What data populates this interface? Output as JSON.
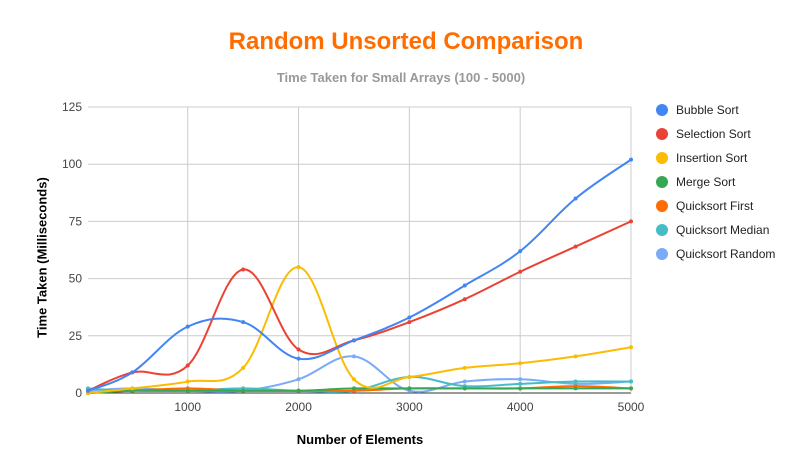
{
  "chart_data": {
    "type": "line",
    "title": "Random Unsorted Comparison",
    "subtitle": "Time Taken for Small Arrays (100 - 5000)",
    "xlabel": "Number of Elements",
    "ylabel": "Time Taken (Milliseconds)",
    "title_color": "#ff6d01",
    "x": [
      100,
      500,
      1000,
      1500,
      2000,
      2500,
      3000,
      3500,
      4000,
      4500,
      5000
    ],
    "xlim": [
      100,
      5000
    ],
    "ylim": [
      0,
      125
    ],
    "xticks": [
      1000,
      2000,
      3000,
      4000,
      5000
    ],
    "yticks": [
      0,
      25,
      50,
      75,
      100,
      125
    ],
    "grid": true,
    "legend_position": "right",
    "series": [
      {
        "name": "Bubble Sort",
        "color": "#4285f4",
        "values": [
          1,
          9,
          29,
          31,
          15,
          23,
          33,
          47,
          62,
          85,
          102
        ]
      },
      {
        "name": "Selection Sort",
        "color": "#ea4335",
        "values": [
          1,
          9,
          12,
          54,
          19,
          23,
          31,
          41,
          53,
          64,
          75
        ]
      },
      {
        "name": "Insertion Sort",
        "color": "#fbbc04",
        "values": [
          0,
          2,
          5,
          11,
          55,
          6,
          7,
          11,
          13,
          16,
          20
        ]
      },
      {
        "name": "Merge Sort",
        "color": "#34a853",
        "values": [
          0,
          1,
          1,
          1,
          1,
          2,
          2,
          2,
          2,
          2,
          2
        ]
      },
      {
        "name": "Quicksort First",
        "color": "#ff6d01",
        "values": [
          0,
          1,
          2,
          1,
          1,
          1,
          2,
          2,
          2,
          3,
          2
        ]
      },
      {
        "name": "Quicksort Median",
        "color": "#46bdc6",
        "values": [
          2,
          1,
          1,
          2,
          1,
          1,
          7,
          3,
          4,
          5,
          5
        ]
      },
      {
        "name": "Quicksort Random",
        "color": "#7baaf7",
        "values": [
          1,
          2,
          1,
          1,
          6,
          16,
          1,
          5,
          6,
          4,
          5
        ]
      }
    ]
  }
}
